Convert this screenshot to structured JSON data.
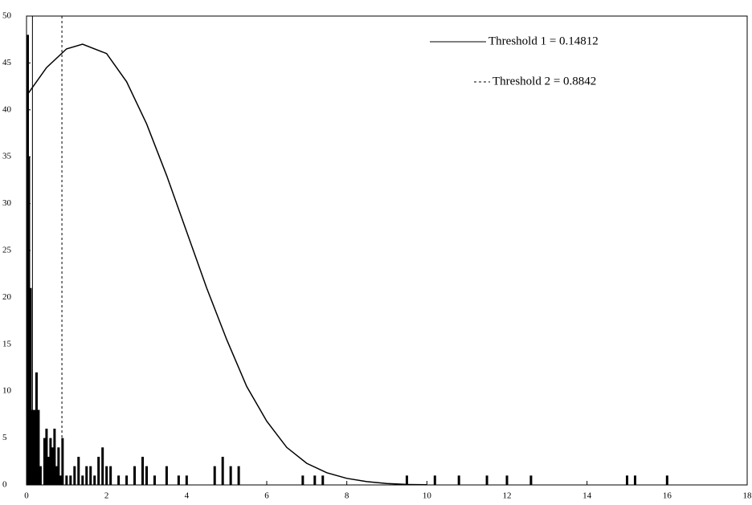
{
  "chart_data": {
    "type": "histogram",
    "xlim": [
      0,
      18
    ],
    "ylim": [
      0,
      50
    ],
    "xticks": [
      0,
      2,
      4,
      6,
      8,
      10,
      12,
      14,
      16,
      18
    ],
    "yticks": [
      0,
      5,
      10,
      15,
      20,
      25,
      30,
      35,
      40,
      45,
      50
    ],
    "bars": {
      "color": "#000",
      "x": [
        0.03,
        0.06,
        0.1,
        0.15,
        0.2,
        0.25,
        0.3,
        0.35,
        0.45,
        0.5,
        0.55,
        0.6,
        0.65,
        0.7,
        0.75,
        0.8,
        0.85,
        0.9,
        1.0,
        1.1,
        1.2,
        1.3,
        1.4,
        1.5,
        1.6,
        1.7,
        1.8,
        1.9,
        2.0,
        2.1,
        2.3,
        2.5,
        2.7,
        2.9,
        3.0,
        3.2,
        3.5,
        3.8,
        4.0,
        4.7,
        4.9,
        5.1,
        5.3,
        6.9,
        7.2,
        7.4,
        9.5,
        10.2,
        10.8,
        11.5,
        12.0,
        12.6,
        15.0,
        15.2,
        16.0
      ],
      "values": [
        48,
        35,
        21,
        8,
        8,
        12,
        8,
        2,
        5,
        6,
        3,
        5,
        4,
        6,
        2,
        4,
        1,
        5,
        1,
        1,
        2,
        3,
        1,
        2,
        2,
        1,
        3,
        4,
        2,
        2,
        1,
        1,
        2,
        3,
        2,
        1,
        2,
        1,
        1,
        2,
        3,
        2,
        2,
        1,
        1,
        1,
        1,
        1,
        1,
        1,
        1,
        1,
        1,
        1,
        1
      ]
    },
    "curve": {
      "color": "#000",
      "x": [
        0,
        0.5,
        1,
        1.4,
        2,
        2.5,
        3,
        3.5,
        4,
        4.5,
        5,
        5.5,
        6,
        6.5,
        7,
        7.5,
        8,
        8.5,
        9,
        9.5,
        10
      ],
      "values": [
        41.5,
        44.5,
        46.5,
        47,
        46,
        43,
        38.5,
        33,
        27,
        21,
        15.5,
        10.5,
        6.8,
        4,
        2.3,
        1.3,
        0.7,
        0.35,
        0.15,
        0.05,
        0.02
      ]
    },
    "thresholds": [
      {
        "label": "Threshold 1 = 0.14812",
        "value": 0.14812,
        "dash": "none"
      },
      {
        "label": "Threshold 2 = 0.8842",
        "value": 0.8842,
        "dash": "3,3"
      }
    ]
  }
}
